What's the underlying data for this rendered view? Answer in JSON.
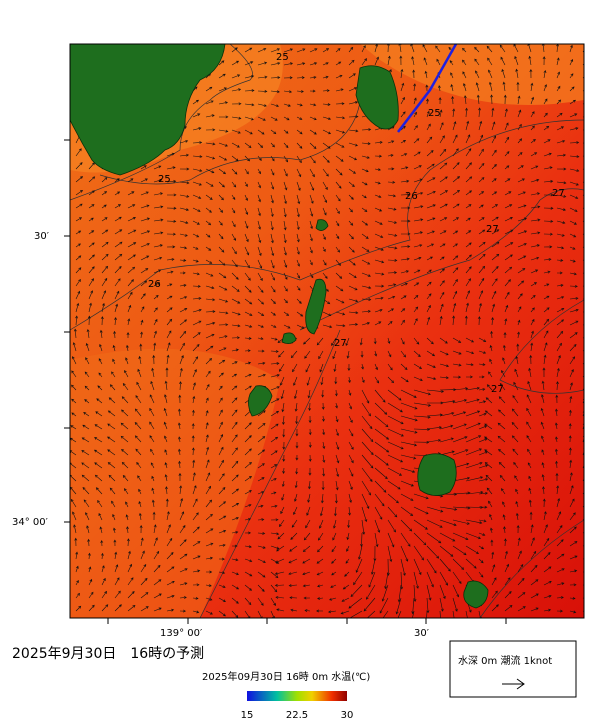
{
  "map": {
    "lat_labels": [
      "30′",
      "34° 00′"
    ],
    "lon_labels": [
      "139° 00′",
      "30′"
    ],
    "contour_labels": [
      "25",
      "25",
      "25",
      "26",
      "26",
      "27",
      "27",
      "27",
      "27"
    ],
    "title": "2025年9月30日　16時の予測",
    "colorbar": {
      "caption": "2025年09月30日 16時 0m 水温(℃)",
      "range": [
        15,
        30
      ],
      "ticks": [
        15,
        22.5,
        30
      ]
    },
    "legend": "水深 0m 潮流 1knot"
  }
}
